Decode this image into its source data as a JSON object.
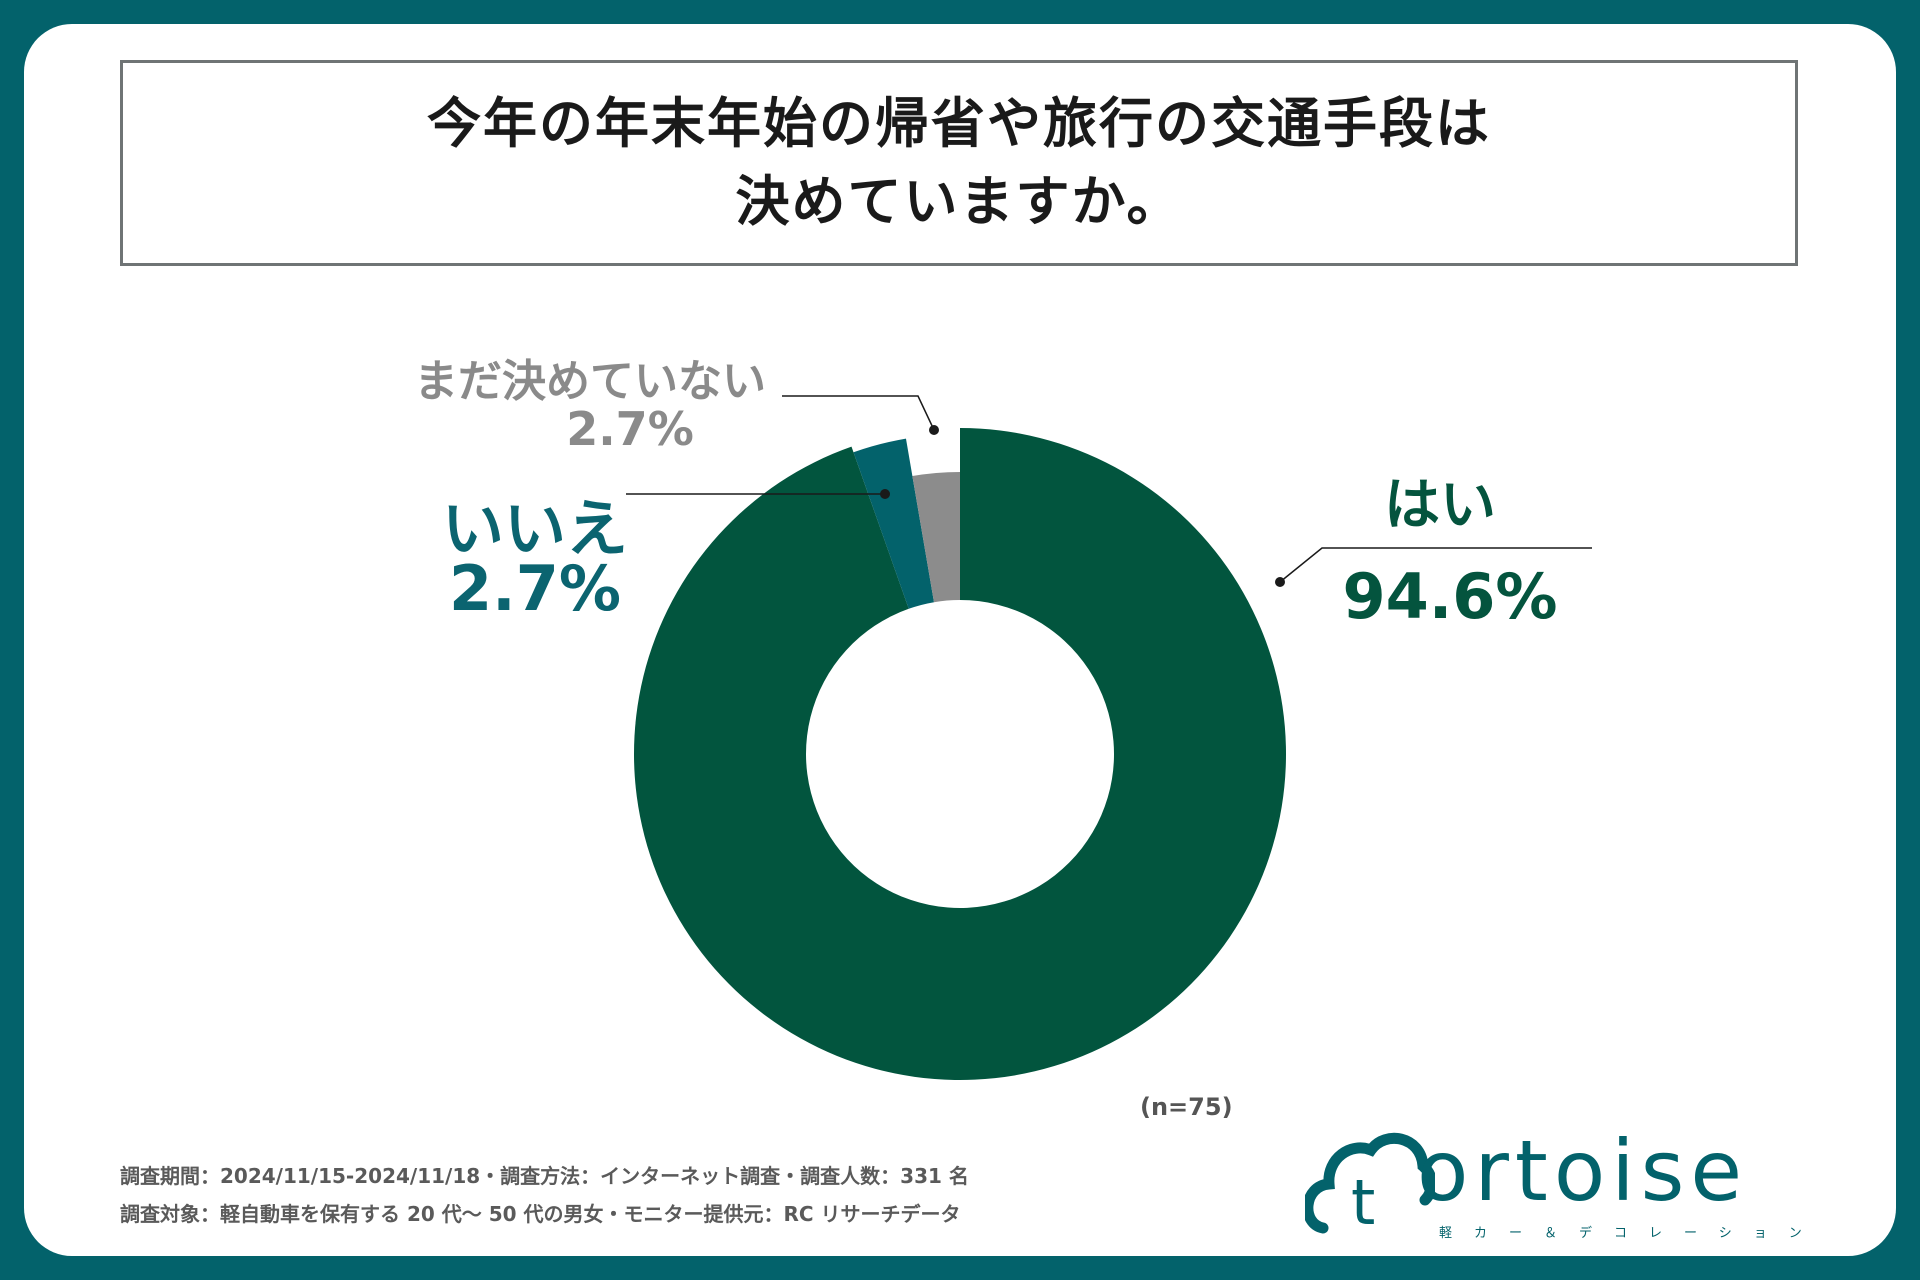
{
  "title": {
    "line1": "今年の年末年始の帰省や旅行の交通手段は",
    "line2": "決めていますか。"
  },
  "chart_data": {
    "type": "donut",
    "segments": [
      {
        "label": "はい",
        "value": 94.6,
        "value_label": "94.6%",
        "color": "#02553e"
      },
      {
        "label": "いいえ",
        "value": 2.7,
        "value_label": "2.7%",
        "color": "#03626b"
      },
      {
        "label": "まだ決めていない",
        "value": 2.7,
        "value_label": "2.7%",
        "color": "#8c8c8c"
      }
    ],
    "sample_size": "(n=75)"
  },
  "footnotes": {
    "line1": "調査期間：2024/11/15-2024/11/18・調査方法：インターネット調査・調査人数：331 名",
    "line2": "調査対象：軽自動車を保有する 20 代～ 50 代の男女・モニター提供元：RC リサーチデータ"
  },
  "logo": {
    "wordmark": "ortoise",
    "icon_letter": "t",
    "tagline": "軽カー＆デコレーション"
  },
  "colors": {
    "background": "#03626b",
    "yes": "#02553e",
    "no": "#03626b",
    "undecided": "#8c8c8c"
  }
}
